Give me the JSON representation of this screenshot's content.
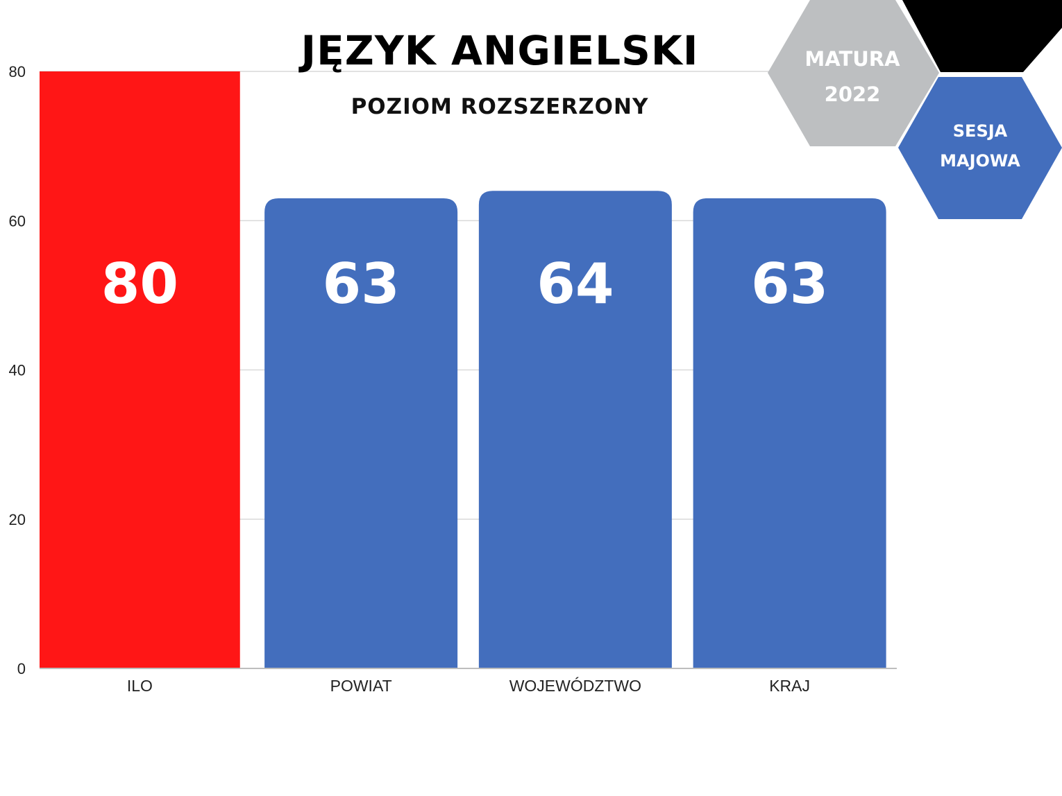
{
  "header": {
    "title": "JĘZYK ANGIELSKI",
    "subtitle": "POZIOM ROZSZERZONY"
  },
  "badges": {
    "matura_line1": "MATURA",
    "matura_line2": "2022",
    "sesja_line1": "SESJA",
    "sesja_line2": "MAJOWA"
  },
  "colors": {
    "highlight": "#ff1616",
    "bar": "#436ebd",
    "badge_gray": "#bdbfc1",
    "badge_black": "#000000",
    "badge_blue": "#436ebd",
    "grid": "#d9d9d9"
  },
  "chart_data": {
    "type": "bar",
    "title": "JĘZYK ANGIELSKI",
    "subtitle": "POZIOM ROZSZERZONY",
    "categories": [
      "ILO",
      "POWIAT",
      "WOJEWÓDZTWO",
      "KRAJ"
    ],
    "values": [
      80,
      63,
      64,
      63
    ],
    "data_labels": [
      "80",
      "63",
      "64",
      "63"
    ],
    "highlight_index": 0,
    "ylim": [
      0,
      80
    ],
    "yticks": [
      0,
      20,
      40,
      60,
      80
    ],
    "grid": true,
    "legend": "none"
  }
}
